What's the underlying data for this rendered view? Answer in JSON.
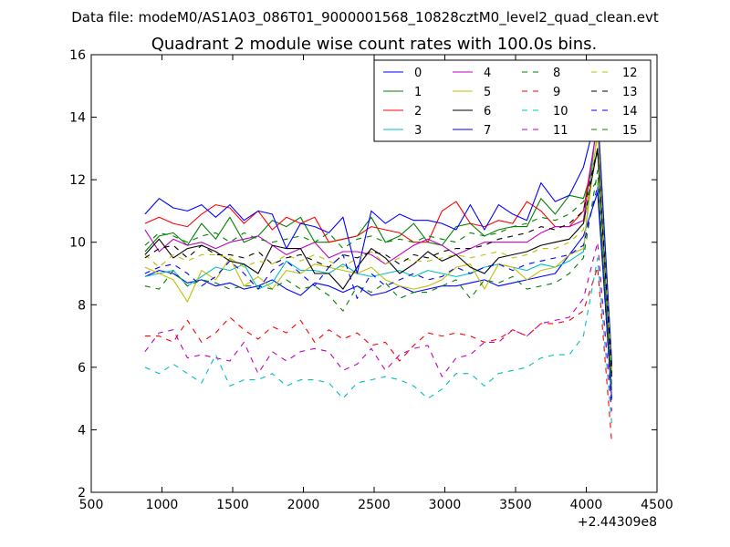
{
  "figure": {
    "suptitle": "Data file: modeM0/AS1A03_086T01_9000001568_10828cztM0_level2_quad_clean.evt"
  },
  "chart_data": {
    "type": "line",
    "title": "Quadrant 2 module wise count rates with 100.0s bins.",
    "xlabel": "",
    "ylabel": "",
    "x_offset_label": "+2.44309e8",
    "xlim": [
      500,
      4500
    ],
    "ylim": [
      2,
      16
    ],
    "xticks": [
      500,
      1000,
      1500,
      2000,
      2500,
      3000,
      3500,
      4000,
      4500
    ],
    "yticks": [
      2,
      4,
      6,
      8,
      10,
      12,
      14,
      16
    ],
    "legend": {
      "location": "top-right",
      "columns": 4
    },
    "x": [
      880,
      980,
      1080,
      1180,
      1280,
      1380,
      1480,
      1580,
      1680,
      1780,
      1880,
      1980,
      2080,
      2180,
      2280,
      2380,
      2480,
      2580,
      2680,
      2780,
      2880,
      2980,
      3080,
      3180,
      3280,
      3380,
      3480,
      3580,
      3680,
      3780,
      3880,
      3980,
      4080,
      4180
    ],
    "series": [
      {
        "name": "0",
        "color": "#0000ff",
        "dash": "solid",
        "values": [
          8.9,
          9.1,
          9.0,
          8.7,
          8.8,
          8.6,
          8.7,
          8.5,
          8.6,
          8.8,
          8.5,
          8.3,
          8.7,
          8.6,
          8.4,
          8.6,
          8.3,
          8.4,
          8.6,
          8.4,
          8.5,
          8.6,
          8.6,
          8.7,
          8.8,
          8.6,
          8.7,
          8.8,
          8.9,
          9.0,
          9.6,
          10.2,
          11.6,
          5.0
        ]
      },
      {
        "name": "1",
        "color": "#008000",
        "dash": "solid",
        "values": [
          9.7,
          10.2,
          10.3,
          9.9,
          10.6,
          10.1,
          10.8,
          10.0,
          10.2,
          10.7,
          10.5,
          10.8,
          10.0,
          10.0,
          10.1,
          10.2,
          10.8,
          10.0,
          10.2,
          10.6,
          10.0,
          9.9,
          10.5,
          10.6,
          10.2,
          10.4,
          10.5,
          10.5,
          11.4,
          10.9,
          11.5,
          11.4,
          12.9,
          6.0
        ]
      },
      {
        "name": "2",
        "color": "#ff0000",
        "dash": "solid",
        "values": [
          10.6,
          10.8,
          10.6,
          10.5,
          10.9,
          11.2,
          11.1,
          10.6,
          11.0,
          10.4,
          10.8,
          10.6,
          10.8,
          10.0,
          10.1,
          10.2,
          10.5,
          10.4,
          10.3,
          10.0,
          10.0,
          11.0,
          11.3,
          10.6,
          10.5,
          10.7,
          10.6,
          11.3,
          11.0,
          10.5,
          10.5,
          11.0,
          13.8,
          6.2
        ]
      },
      {
        "name": "3",
        "color": "#00bfbf",
        "dash": "solid",
        "values": [
          8.9,
          9.0,
          9.1,
          8.6,
          8.9,
          9.2,
          9.1,
          9.3,
          8.5,
          8.7,
          9.4,
          9.1,
          9.1,
          9.0,
          9.3,
          9.0,
          8.9,
          9.0,
          9.1,
          8.9,
          9.1,
          9.0,
          8.9,
          9.0,
          9.2,
          9.3,
          9.2,
          9.1,
          9.3,
          9.2,
          9.4,
          9.7,
          14.2,
          6.2
        ]
      },
      {
        "name": "4",
        "color": "#bf00bf",
        "dash": "solid",
        "values": [
          10.4,
          9.7,
          10.1,
          9.9,
          10.0,
          9.8,
          10.0,
          10.1,
          10.2,
          9.9,
          9.6,
          9.8,
          10.0,
          9.5,
          9.7,
          9.7,
          9.6,
          9.3,
          9.6,
          9.9,
          10.1,
          9.9,
          9.6,
          9.8,
          10.0,
          10.0,
          10.0,
          10.0,
          10.3,
          10.5,
          10.5,
          10.7,
          13.9,
          6.0
        ]
      },
      {
        "name": "5",
        "color": "#bfbf00",
        "dash": "solid",
        "values": [
          9.2,
          9.0,
          8.8,
          8.1,
          9.1,
          8.8,
          9.5,
          8.6,
          8.9,
          8.5,
          9.1,
          9.0,
          9.3,
          9.2,
          9.1,
          9.0,
          9.2,
          8.8,
          8.6,
          8.5,
          8.6,
          8.8,
          9.2,
          9.3,
          8.5,
          9.3,
          9.2,
          8.8,
          9.1,
          9.2,
          9.6,
          9.8,
          13.6,
          6.1
        ]
      },
      {
        "name": "6",
        "color": "#000000",
        "dash": "solid",
        "values": [
          9.6,
          10.1,
          9.5,
          9.8,
          9.9,
          9.7,
          9.4,
          9.3,
          9.0,
          9.9,
          9.8,
          9.8,
          9.0,
          9.0,
          8.5,
          9.2,
          9.8,
          9.5,
          9.0,
          9.3,
          9.7,
          9.4,
          9.6,
          9.2,
          9.0,
          9.5,
          9.6,
          9.7,
          9.9,
          10.0,
          10.1,
          10.6,
          13.0,
          5.8
        ]
      },
      {
        "name": "7",
        "color": "#0000ff",
        "dash": "solid",
        "values": [
          10.9,
          11.4,
          11.1,
          11.0,
          11.2,
          10.8,
          11.2,
          10.7,
          11.0,
          10.9,
          9.8,
          10.6,
          10.5,
          10.3,
          10.8,
          9.0,
          11.0,
          10.6,
          10.9,
          10.7,
          10.7,
          10.6,
          10.4,
          11.2,
          10.4,
          11.2,
          10.9,
          10.7,
          11.9,
          11.3,
          11.5,
          12.4,
          14.2,
          6.1
        ]
      },
      {
        "name": "8",
        "color": "#008000",
        "dash": "dashed",
        "values": [
          8.6,
          8.5,
          9.1,
          8.6,
          8.8,
          8.7,
          8.5,
          8.6,
          8.6,
          8.5,
          8.8,
          8.5,
          8.6,
          8.3,
          7.8,
          8.6,
          8.4,
          8.7,
          8.2,
          8.4,
          8.4,
          8.6,
          8.8,
          8.2,
          8.8,
          8.7,
          8.9,
          8.5,
          8.6,
          8.7,
          9.0,
          9.5,
          12.3,
          5.2
        ]
      },
      {
        "name": "9",
        "color": "#ff0000",
        "dash": "dashed",
        "values": [
          7.0,
          7.0,
          6.8,
          7.5,
          6.8,
          7.1,
          7.6,
          7.2,
          6.9,
          7.3,
          7.1,
          7.5,
          6.8,
          7.2,
          6.9,
          7.1,
          6.7,
          6.8,
          6.2,
          6.7,
          7.1,
          7.0,
          7.1,
          7.0,
          6.8,
          6.9,
          7.2,
          7.0,
          7.4,
          7.4,
          7.5,
          7.8,
          9.2,
          3.6
        ]
      },
      {
        "name": "10",
        "color": "#00bfbf",
        "dash": "dashed",
        "values": [
          6.0,
          5.8,
          6.1,
          5.8,
          5.5,
          6.4,
          5.4,
          5.6,
          5.6,
          5.8,
          5.4,
          5.6,
          5.6,
          5.5,
          5.0,
          5.5,
          5.6,
          5.7,
          5.6,
          5.4,
          5.0,
          5.3,
          5.8,
          5.8,
          5.4,
          5.8,
          5.9,
          6.0,
          6.3,
          6.4,
          6.4,
          7.0,
          9.5,
          4.2
        ]
      },
      {
        "name": "11",
        "color": "#bf00bf",
        "dash": "dashed",
        "values": [
          6.5,
          7.1,
          7.2,
          6.3,
          6.4,
          6.3,
          6.2,
          6.8,
          5.8,
          6.5,
          6.2,
          6.5,
          6.6,
          6.5,
          5.9,
          6.1,
          6.6,
          5.9,
          6.4,
          6.6,
          6.7,
          5.7,
          6.3,
          6.4,
          6.8,
          6.8,
          7.2,
          7.0,
          7.4,
          7.5,
          7.6,
          8.2,
          10.0,
          4.6
        ]
      },
      {
        "name": "12",
        "color": "#bfbf00",
        "dash": "dashed",
        "values": [
          9.6,
          9.2,
          9.6,
          9.4,
          9.6,
          9.6,
          9.5,
          9.2,
          9.4,
          9.3,
          9.6,
          9.4,
          9.6,
          9.4,
          9.2,
          9.5,
          9.7,
          9.3,
          9.5,
          9.4,
          9.4,
          9.5,
          9.6,
          9.5,
          9.6,
          9.7,
          9.5,
          9.6,
          9.8,
          9.8,
          10.0,
          10.4,
          13.4,
          5.9
        ]
      },
      {
        "name": "13",
        "color": "#000000",
        "dash": "dashed",
        "values": [
          9.5,
          9.8,
          9.9,
          9.5,
          9.9,
          9.6,
          9.6,
          9.5,
          9.7,
          9.3,
          9.5,
          9.6,
          9.4,
          9.2,
          9.6,
          9.5,
          9.7,
          9.6,
          9.3,
          9.6,
          9.5,
          9.7,
          9.8,
          9.8,
          9.9,
          10.1,
          10.2,
          10.3,
          10.5,
          10.4,
          10.6,
          11.0,
          13.0,
          5.7
        ]
      },
      {
        "name": "14",
        "color": "#0000ff",
        "dash": "dashed",
        "values": [
          9.0,
          9.2,
          9.3,
          9.0,
          8.6,
          8.9,
          9.4,
          9.0,
          8.5,
          9.1,
          9.4,
          9.0,
          8.6,
          9.2,
          9.6,
          8.2,
          9.0,
          8.6,
          8.8,
          9.0,
          8.8,
          8.9,
          9.2,
          9.0,
          9.2,
          9.3,
          9.1,
          9.3,
          9.4,
          9.5,
          9.6,
          9.9,
          11.8,
          4.8
        ]
      },
      {
        "name": "15",
        "color": "#008000",
        "dash": "dashed",
        "values": [
          9.9,
          10.3,
          10.2,
          10.0,
          10.2,
          10.3,
          10.0,
          10.3,
          10.1,
          10.0,
          10.1,
          10.2,
          10.0,
          10.3,
          9.8,
          10.1,
          10.2,
          10.0,
          10.1,
          10.0,
          10.2,
          10.1,
          10.0,
          10.3,
          10.2,
          10.3,
          10.5,
          10.6,
          10.8,
          10.7,
          10.9,
          11.3,
          12.0,
          5.4
        ]
      }
    ]
  }
}
